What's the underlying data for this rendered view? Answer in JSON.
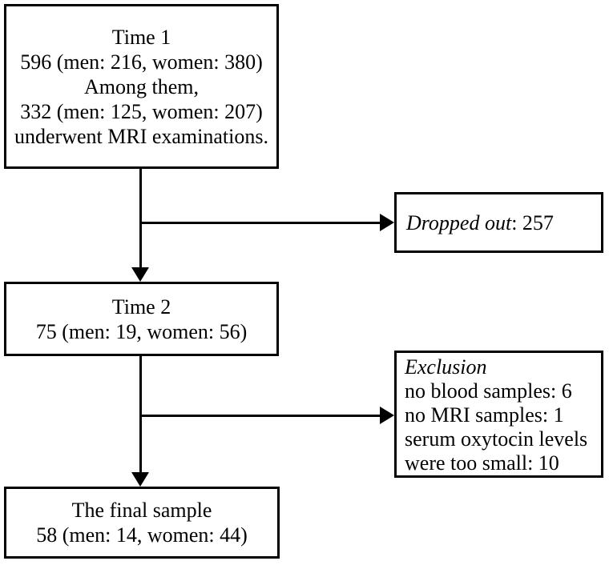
{
  "figure": {
    "background_color": "#ffffff",
    "line_color": "#000000"
  },
  "boxes": {
    "time1": {
      "lines": [
        "Time 1",
        "596 (men: 216, women: 380)",
        "Among them,",
        "332 (men: 125, women: 207)",
        "underwent MRI examinations."
      ]
    },
    "dropped_out": {
      "label_italic": "Dropped out",
      "label_regular": ": 257"
    },
    "time2": {
      "lines": [
        "Time 2",
        "75 (men: 19, women: 56)"
      ]
    },
    "exclusion": {
      "title_italic": "Exclusion",
      "lines": [
        "no blood samples: 6",
        "no MRI samples: 1",
        "serum oxytocin levels",
        "were too small: 10"
      ]
    },
    "final_sample": {
      "lines": [
        "The final sample",
        "58 (men: 14, women: 44)"
      ]
    }
  }
}
